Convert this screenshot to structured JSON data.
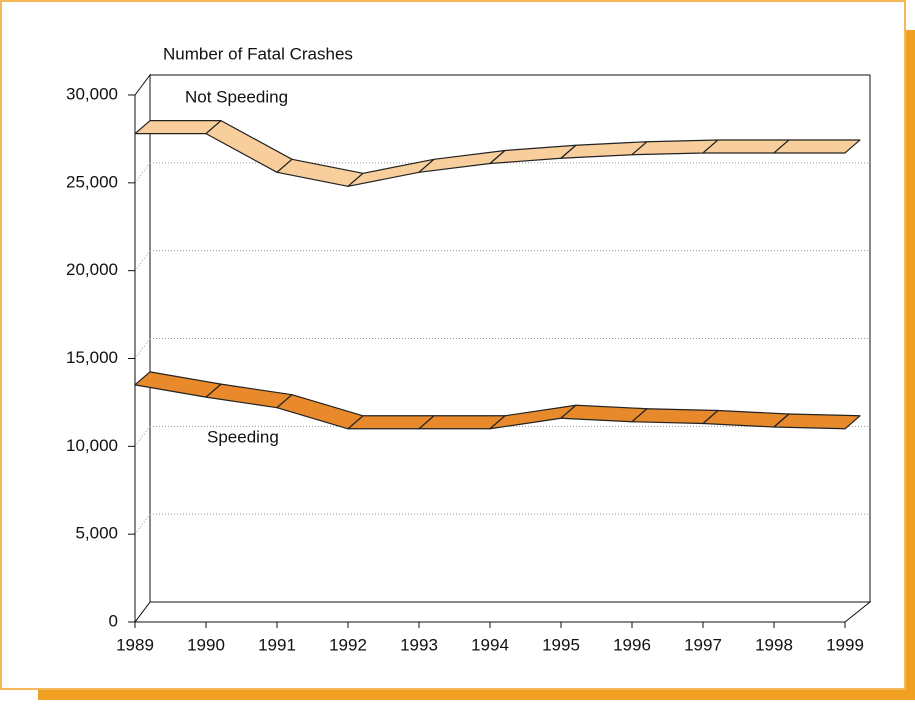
{
  "chart_data": {
    "type": "line",
    "title": "Number of Fatal Crashes",
    "categories": [
      "1989",
      "1990",
      "1991",
      "1992",
      "1993",
      "1994",
      "1995",
      "1996",
      "1997",
      "1998",
      "1999"
    ],
    "series": [
      {
        "name": "Not Speeding",
        "color": "#f8cf9c",
        "values": [
          27800,
          27800,
          25600,
          24800,
          25600,
          26100,
          26400,
          26600,
          26700,
          26700,
          26700
        ]
      },
      {
        "name": "Speeding",
        "color": "#e8892b",
        "values": [
          13500,
          12800,
          12200,
          11000,
          11000,
          11000,
          11600,
          11400,
          11300,
          11100,
          11000
        ]
      }
    ],
    "ylim": [
      0,
      30000
    ],
    "yticks": [
      0,
      {
        "value": 5000,
        "label": "5,000"
      },
      {
        "value": 10000,
        "label": "10,000"
      },
      {
        "value": 15000,
        "label": "15,000"
      },
      {
        "value": 20000,
        "label": "20,000"
      },
      {
        "value": 25000,
        "label": "25,000"
      },
      {
        "value": 30000,
        "label": "30,000"
      }
    ],
    "grid": true
  }
}
